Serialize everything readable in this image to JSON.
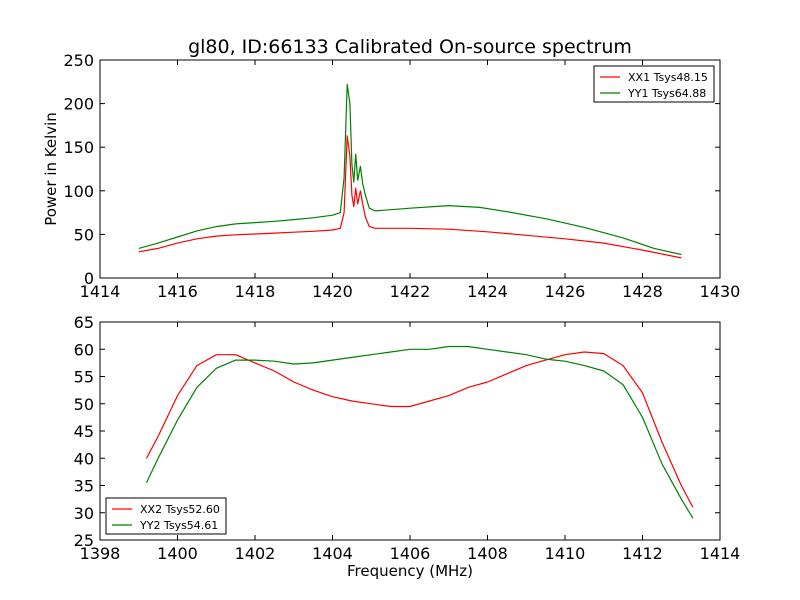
{
  "title": "gl80, ID:66133 Calibrated On-source spectrum",
  "colors": {
    "red": "#ff0000",
    "green": "#008000"
  },
  "chart_data": [
    {
      "type": "line",
      "ylabel": "Power in Kelvin",
      "xlabel": "",
      "xlim": [
        1414,
        1430
      ],
      "ylim": [
        0,
        250
      ],
      "xticks": [
        1414,
        1416,
        1418,
        1420,
        1422,
        1424,
        1426,
        1428,
        1430
      ],
      "yticks": [
        0,
        50,
        100,
        150,
        200,
        250
      ],
      "legend_position": "top-right",
      "series": [
        {
          "name": "XX1 Tsys48.15",
          "color": "#ff0000",
          "points": [
            [
              1415.0,
              30
            ],
            [
              1415.5,
              34
            ],
            [
              1416.0,
              40
            ],
            [
              1416.5,
              45
            ],
            [
              1417.0,
              48
            ],
            [
              1417.5,
              49.5
            ],
            [
              1418.0,
              50.5
            ],
            [
              1418.5,
              51.5
            ],
            [
              1419.0,
              52.5
            ],
            [
              1419.5,
              53.5
            ],
            [
              1420.0,
              55
            ],
            [
              1420.2,
              57
            ],
            [
              1420.3,
              75
            ],
            [
              1420.38,
              163
            ],
            [
              1420.45,
              140
            ],
            [
              1420.5,
              95
            ],
            [
              1420.55,
              82
            ],
            [
              1420.6,
              103
            ],
            [
              1420.65,
              85
            ],
            [
              1420.72,
              100
            ],
            [
              1420.78,
              85
            ],
            [
              1420.85,
              70
            ],
            [
              1420.95,
              59
            ],
            [
              1421.1,
              57
            ],
            [
              1422.0,
              57
            ],
            [
              1423.0,
              56
            ],
            [
              1424.0,
              53
            ],
            [
              1425.0,
              49
            ],
            [
              1426.0,
              45
            ],
            [
              1427.0,
              40
            ],
            [
              1428.0,
              32
            ],
            [
              1429.0,
              23
            ]
          ]
        },
        {
          "name": "YY1 Tsys64.88",
          "color": "#008000",
          "points": [
            [
              1415.0,
              34
            ],
            [
              1415.5,
              40
            ],
            [
              1416.0,
              47
            ],
            [
              1416.5,
              54
            ],
            [
              1417.0,
              59
            ],
            [
              1417.5,
              62
            ],
            [
              1418.0,
              63.5
            ],
            [
              1418.5,
              65
            ],
            [
              1419.0,
              67
            ],
            [
              1419.5,
              69
            ],
            [
              1420.0,
              72
            ],
            [
              1420.2,
              75
            ],
            [
              1420.3,
              115
            ],
            [
              1420.38,
              222
            ],
            [
              1420.45,
              200
            ],
            [
              1420.5,
              130
            ],
            [
              1420.55,
              110
            ],
            [
              1420.6,
              142
            ],
            [
              1420.65,
              112
            ],
            [
              1420.72,
              128
            ],
            [
              1420.78,
              108
            ],
            [
              1420.85,
              95
            ],
            [
              1420.95,
              80
            ],
            [
              1421.1,
              77
            ],
            [
              1422.0,
              80
            ],
            [
              1423.0,
              83
            ],
            [
              1423.8,
              81
            ],
            [
              1424.5,
              76
            ],
            [
              1425.5,
              68
            ],
            [
              1426.5,
              58
            ],
            [
              1427.5,
              46
            ],
            [
              1428.3,
              34
            ],
            [
              1429.0,
              27
            ]
          ]
        }
      ]
    },
    {
      "type": "line",
      "ylabel": "",
      "xlabel": "Frequency (MHz)",
      "xlim": [
        1398,
        1414
      ],
      "ylim": [
        25,
        65
      ],
      "xticks": [
        1398,
        1400,
        1402,
        1404,
        1406,
        1408,
        1410,
        1412,
        1414
      ],
      "yticks": [
        25,
        30,
        35,
        40,
        45,
        50,
        55,
        60,
        65
      ],
      "legend_position": "bottom-left",
      "series": [
        {
          "name": "XX2 Tsys52.60",
          "color": "#ff0000",
          "points": [
            [
              1399.2,
              40
            ],
            [
              1399.5,
              44
            ],
            [
              1400.0,
              51.5
            ],
            [
              1400.5,
              57
            ],
            [
              1401.0,
              59
            ],
            [
              1401.5,
              59
            ],
            [
              1402.0,
              57.5
            ],
            [
              1402.5,
              56
            ],
            [
              1403.0,
              54
            ],
            [
              1403.5,
              52.5
            ],
            [
              1404.0,
              51.3
            ],
            [
              1404.5,
              50.5
            ],
            [
              1405.0,
              50
            ],
            [
              1405.5,
              49.5
            ],
            [
              1406.0,
              49.5
            ],
            [
              1406.5,
              50.5
            ],
            [
              1407.0,
              51.5
            ],
            [
              1407.5,
              53
            ],
            [
              1408.0,
              54
            ],
            [
              1408.5,
              55.5
            ],
            [
              1409.0,
              57
            ],
            [
              1409.5,
              58
            ],
            [
              1410.0,
              59
            ],
            [
              1410.5,
              59.5
            ],
            [
              1411.0,
              59.2
            ],
            [
              1411.5,
              57
            ],
            [
              1412.0,
              52
            ],
            [
              1412.5,
              43
            ],
            [
              1413.0,
              35
            ],
            [
              1413.3,
              31
            ]
          ]
        },
        {
          "name": "YY2 Tsys54.61",
          "color": "#008000",
          "points": [
            [
              1399.2,
              35.5
            ],
            [
              1399.5,
              40
            ],
            [
              1400.0,
              47
            ],
            [
              1400.5,
              53
            ],
            [
              1401.0,
              56.5
            ],
            [
              1401.5,
              58
            ],
            [
              1402.0,
              58
            ],
            [
              1402.5,
              57.8
            ],
            [
              1403.0,
              57.3
            ],
            [
              1403.5,
              57.5
            ],
            [
              1404.0,
              58
            ],
            [
              1404.5,
              58.5
            ],
            [
              1405.0,
              59
            ],
            [
              1405.5,
              59.5
            ],
            [
              1406.0,
              60
            ],
            [
              1406.5,
              60
            ],
            [
              1407.0,
              60.5
            ],
            [
              1407.5,
              60.5
            ],
            [
              1408.0,
              60
            ],
            [
              1408.5,
              59.5
            ],
            [
              1409.0,
              59
            ],
            [
              1409.5,
              58.2
            ],
            [
              1410.0,
              57.8
            ],
            [
              1410.5,
              57
            ],
            [
              1411.0,
              56
            ],
            [
              1411.5,
              53.5
            ],
            [
              1412.0,
              47.5
            ],
            [
              1412.5,
              39
            ],
            [
              1413.0,
              32.5
            ],
            [
              1413.3,
              29
            ]
          ]
        }
      ]
    }
  ]
}
